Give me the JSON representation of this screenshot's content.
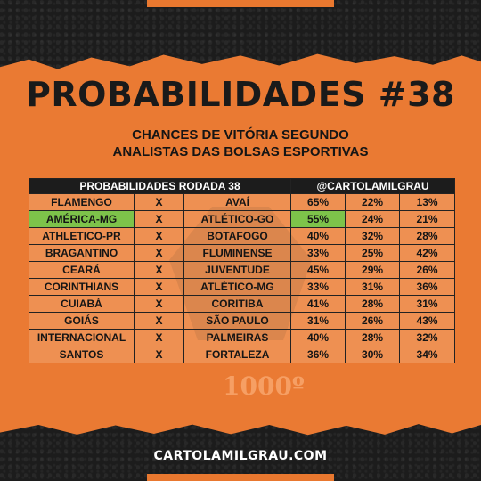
{
  "title": "PROBABILIDADES #38",
  "subtitle_line1": "CHANCES DE VITÓRIA SEGUNDO",
  "subtitle_line2": "ANALISTAS DAS BOLSAS ESPORTIVAS",
  "table": {
    "header_left": "PROBABILIDADES RODADA 38",
    "header_right": "@CARTOLAMILGRAU",
    "versus": "X",
    "rows": [
      {
        "home": "FLAMENGO",
        "away": "AVAÍ",
        "home_pct": "65%",
        "draw_pct": "22%",
        "away_pct": "13%"
      },
      {
        "home": "AMÉRICA-MG",
        "away": "ATLÉTICO-GO",
        "home_pct": "55%",
        "draw_pct": "24%",
        "away_pct": "21%"
      },
      {
        "home": "ATHLETICO-PR",
        "away": "BOTAFOGO",
        "home_pct": "40%",
        "draw_pct": "32%",
        "away_pct": "28%"
      },
      {
        "home": "BRAGANTINO",
        "away": "FLUMINENSE",
        "home_pct": "33%",
        "draw_pct": "25%",
        "away_pct": "42%"
      },
      {
        "home": "CEARÁ",
        "away": "JUVENTUDE",
        "home_pct": "45%",
        "draw_pct": "29%",
        "away_pct": "26%"
      },
      {
        "home": "CORINTHIANS",
        "away": "ATLÉTICO-MG",
        "home_pct": "33%",
        "draw_pct": "31%",
        "away_pct": "36%"
      },
      {
        "home": "CUIABÁ",
        "away": "CORITIBA",
        "home_pct": "41%",
        "draw_pct": "28%",
        "away_pct": "31%"
      },
      {
        "home": "GOIÁS",
        "away": "SÃO PAULO",
        "home_pct": "31%",
        "draw_pct": "26%",
        "away_pct": "43%"
      },
      {
        "home": "INTERNACIONAL",
        "away": "PALMEIRAS",
        "home_pct": "40%",
        "draw_pct": "28%",
        "away_pct": "32%"
      },
      {
        "home": "SANTOS",
        "away": "FORTALEZA",
        "home_pct": "36%",
        "draw_pct": "30%",
        "away_pct": "34%"
      }
    ]
  },
  "watermark_text": "1000º",
  "footer": "CARTOLAMILGRAU.COM",
  "colors": {
    "accent": "#ea7a33",
    "highlight": "#7dc34a",
    "dark": "#1c1c1c"
  }
}
